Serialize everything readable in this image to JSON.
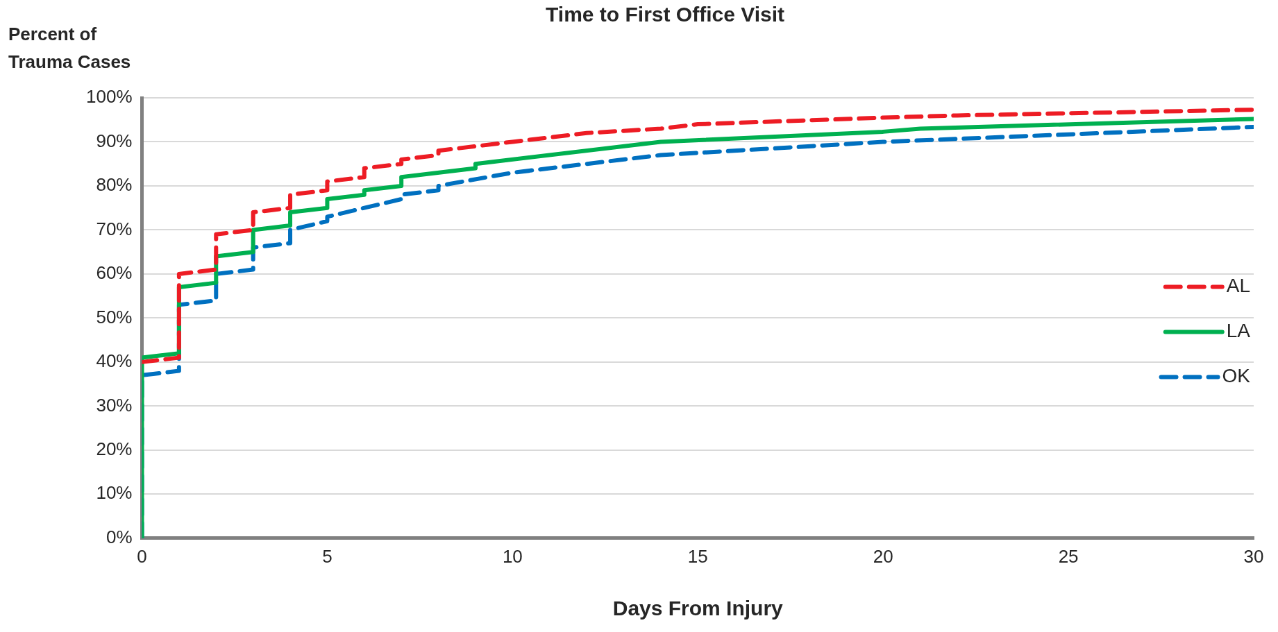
{
  "chart_data": {
    "type": "line",
    "title": "Time to First Office Visit",
    "ylabel": "Percent of\nTrauma Cases",
    "xlabel": "Days From Injury",
    "xlim": [
      0,
      30
    ],
    "xticks": [
      0,
      5,
      10,
      15,
      20,
      25,
      30
    ],
    "ylim": [
      0,
      100
    ],
    "yticks": [
      {
        "value": 0,
        "label": "0%"
      },
      {
        "value": 10,
        "label": "10%"
      },
      {
        "value": 20,
        "label": "20%"
      },
      {
        "value": 30,
        "label": "30%"
      },
      {
        "value": 40,
        "label": "40%"
      },
      {
        "value": 50,
        "label": "50%"
      },
      {
        "value": 60,
        "label": "60%"
      },
      {
        "value": 70,
        "label": "70%"
      },
      {
        "value": 80,
        "label": "80%"
      },
      {
        "value": 90,
        "label": "90%"
      },
      {
        "value": 100,
        "label": "100%"
      }
    ],
    "grid": "y",
    "legend": "right",
    "marker": "none",
    "series": [
      {
        "name": "AL",
        "color": "#ed1c24",
        "line_style": "dashed",
        "x": [
          0,
          1,
          1,
          2,
          2,
          3,
          3,
          4,
          4,
          5,
          5,
          6,
          6,
          7,
          7,
          8,
          8,
          9,
          10,
          12,
          14,
          15,
          20,
          22,
          30
        ],
        "values": [
          40,
          41,
          60,
          61,
          69,
          70,
          74,
          75,
          78,
          79,
          81,
          82,
          84,
          85,
          86,
          87,
          88,
          89,
          90,
          92,
          93,
          94,
          95.5,
          96,
          97.3
        ]
      },
      {
        "name": "LA",
        "color": "#00b050",
        "line_style": "solid",
        "x": [
          0,
          0,
          1,
          1,
          2,
          2,
          3,
          3,
          4,
          4,
          5,
          5,
          6,
          6,
          7,
          7,
          9,
          9,
          14,
          20,
          21,
          30
        ],
        "values": [
          0,
          41,
          42,
          57,
          58,
          64,
          65,
          70,
          71,
          74,
          75,
          77,
          78,
          79,
          80,
          82,
          84,
          85,
          90,
          92.3,
          93,
          95.2
        ]
      },
      {
        "name": "OK",
        "color": "#0070c0",
        "line_style": "dashed",
        "x": [
          0,
          0,
          1,
          1,
          2,
          2,
          3,
          3,
          4,
          4,
          5,
          5,
          7,
          7,
          8,
          8,
          10,
          14,
          20,
          30
        ],
        "values": [
          0,
          37,
          38,
          53,
          54,
          60,
          61,
          66,
          67,
          70,
          72,
          73,
          77,
          78,
          79,
          80,
          83,
          87,
          90,
          93.4
        ]
      }
    ]
  }
}
